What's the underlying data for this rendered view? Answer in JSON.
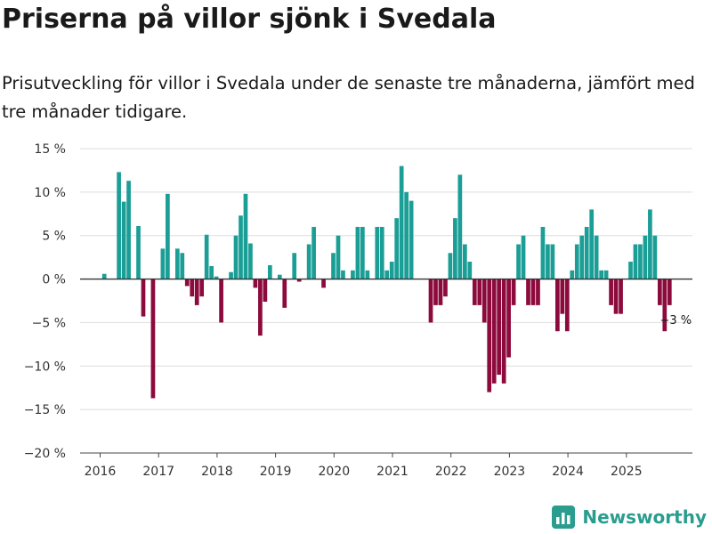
{
  "title": "Priserna på villor sjönk i Svedala",
  "subtitle": "Prisutveckling för villor i Svedala under de senaste tre månaderna, jämfört med tre månader tidigare.",
  "brand": {
    "name": "Newsworthy",
    "icon": "bar-chart-logo-icon"
  },
  "colors": {
    "positive": "#1a9e96",
    "negative": "#8c0a3c",
    "grid": "#dddddd",
    "zero": "#333333"
  },
  "chart_data": {
    "type": "bar",
    "title": "Priserna på villor sjönk i Svedala",
    "xlabel": "",
    "ylabel": "",
    "ylim": [
      -20,
      15
    ],
    "yticks": [
      15,
      10,
      5,
      0,
      -5,
      -10,
      -15,
      -20
    ],
    "ytick_labels": [
      "15 %",
      "10 %",
      "5 %",
      "0 %",
      "−5 %",
      "−10 %",
      "−15 %",
      "−20 %"
    ],
    "xticks": [
      "2016",
      "2017",
      "2018",
      "2019",
      "2020",
      "2021",
      "2022",
      "2023",
      "2024",
      "2025"
    ],
    "start": "2016-01",
    "categories": [
      "2016-01",
      "2016-02",
      "2016-03",
      "2016-04",
      "2016-05",
      "2016-06",
      "2016-07",
      "2016-08",
      "2016-09",
      "2016-10",
      "2016-11",
      "2016-12",
      "2017-01",
      "2017-02",
      "2017-03",
      "2017-04",
      "2017-05",
      "2017-06",
      "2017-07",
      "2017-08",
      "2017-09",
      "2017-10",
      "2017-11",
      "2017-12",
      "2018-01",
      "2018-02",
      "2018-03",
      "2018-04",
      "2018-05",
      "2018-06",
      "2018-07",
      "2018-08",
      "2018-09",
      "2018-10",
      "2018-11",
      "2018-12",
      "2019-01",
      "2019-02",
      "2019-03",
      "2019-04",
      "2019-05",
      "2019-06",
      "2019-07",
      "2019-08",
      "2019-09",
      "2019-10",
      "2019-11",
      "2019-12",
      "2020-01",
      "2020-02",
      "2020-03",
      "2020-04",
      "2020-05",
      "2020-06",
      "2020-07",
      "2020-08",
      "2020-09",
      "2020-10",
      "2020-11",
      "2020-12",
      "2021-01",
      "2021-02",
      "2021-03",
      "2021-04",
      "2021-05",
      "2021-06",
      "2021-07",
      "2021-08",
      "2021-09",
      "2021-10",
      "2021-11",
      "2021-12",
      "2022-01",
      "2022-02",
      "2022-03",
      "2022-04",
      "2022-05",
      "2022-06",
      "2022-07",
      "2022-08",
      "2022-09",
      "2022-10",
      "2022-11",
      "2022-12",
      "2023-01",
      "2023-02",
      "2023-03",
      "2023-04",
      "2023-05",
      "2023-06",
      "2023-07",
      "2023-08",
      "2023-09",
      "2023-10",
      "2023-11",
      "2023-12",
      "2024-01",
      "2024-02",
      "2024-03",
      "2024-04",
      "2024-05",
      "2024-06",
      "2024-07",
      "2024-08",
      "2024-09",
      "2024-10",
      "2024-11",
      "2024-12",
      "2025-01",
      "2025-02",
      "2025-03",
      "2025-04",
      "2025-05",
      "2025-06",
      "2025-07",
      "2025-08",
      "2025-09",
      "2025-10",
      "2025-11",
      "2025-12"
    ],
    "values": [
      null,
      null,
      0.6,
      null,
      null,
      12.3,
      8.9,
      11.3,
      null,
      6.1,
      -4.3,
      null,
      -13.7,
      null,
      3.5,
      9.8,
      null,
      3.5,
      3.0,
      -0.8,
      -2.0,
      -3.0,
      -2.0,
      5.1,
      1.5,
      0.3,
      -5.0,
      null,
      0.8,
      5.0,
      7.3,
      9.8,
      4.1,
      -1.0,
      -6.5,
      -2.6,
      1.6,
      null,
      0.5,
      -3.3,
      null,
      3.0,
      -0.3,
      null,
      4.0,
      6.0,
      null,
      -1.0,
      null,
      3.0,
      5.0,
      1.0,
      null,
      1.0,
      6.0,
      6.0,
      1.0,
      null,
      6.0,
      6.0,
      1.0,
      2.0,
      7.0,
      13.0,
      10.0,
      9.0,
      null,
      null,
      null,
      -5.0,
      -3.0,
      -3.0,
      -2.0,
      3.0,
      7.0,
      12.0,
      4.0,
      2.0,
      -3.0,
      -3.0,
      -5.0,
      -13.0,
      -12.0,
      -11.0,
      -12.0,
      -9.0,
      -3.0,
      4.0,
      5.0,
      -3.0,
      -3.0,
      -3.0,
      6.0,
      4.0,
      4.0,
      -6.0,
      -4.0,
      -6.0,
      1.0,
      4.0,
      5.0,
      6.0,
      8.0,
      5.0,
      1.0,
      1.0,
      -3.0,
      -4.0,
      -4.0,
      null,
      2.0,
      4.0,
      4.0,
      5.0,
      8.0,
      5.0,
      -3.0,
      -6.0,
      -3.0,
      null
    ],
    "annotations": [
      {
        "category": "2025-11",
        "value": -3,
        "text": "−3 %"
      }
    ]
  }
}
